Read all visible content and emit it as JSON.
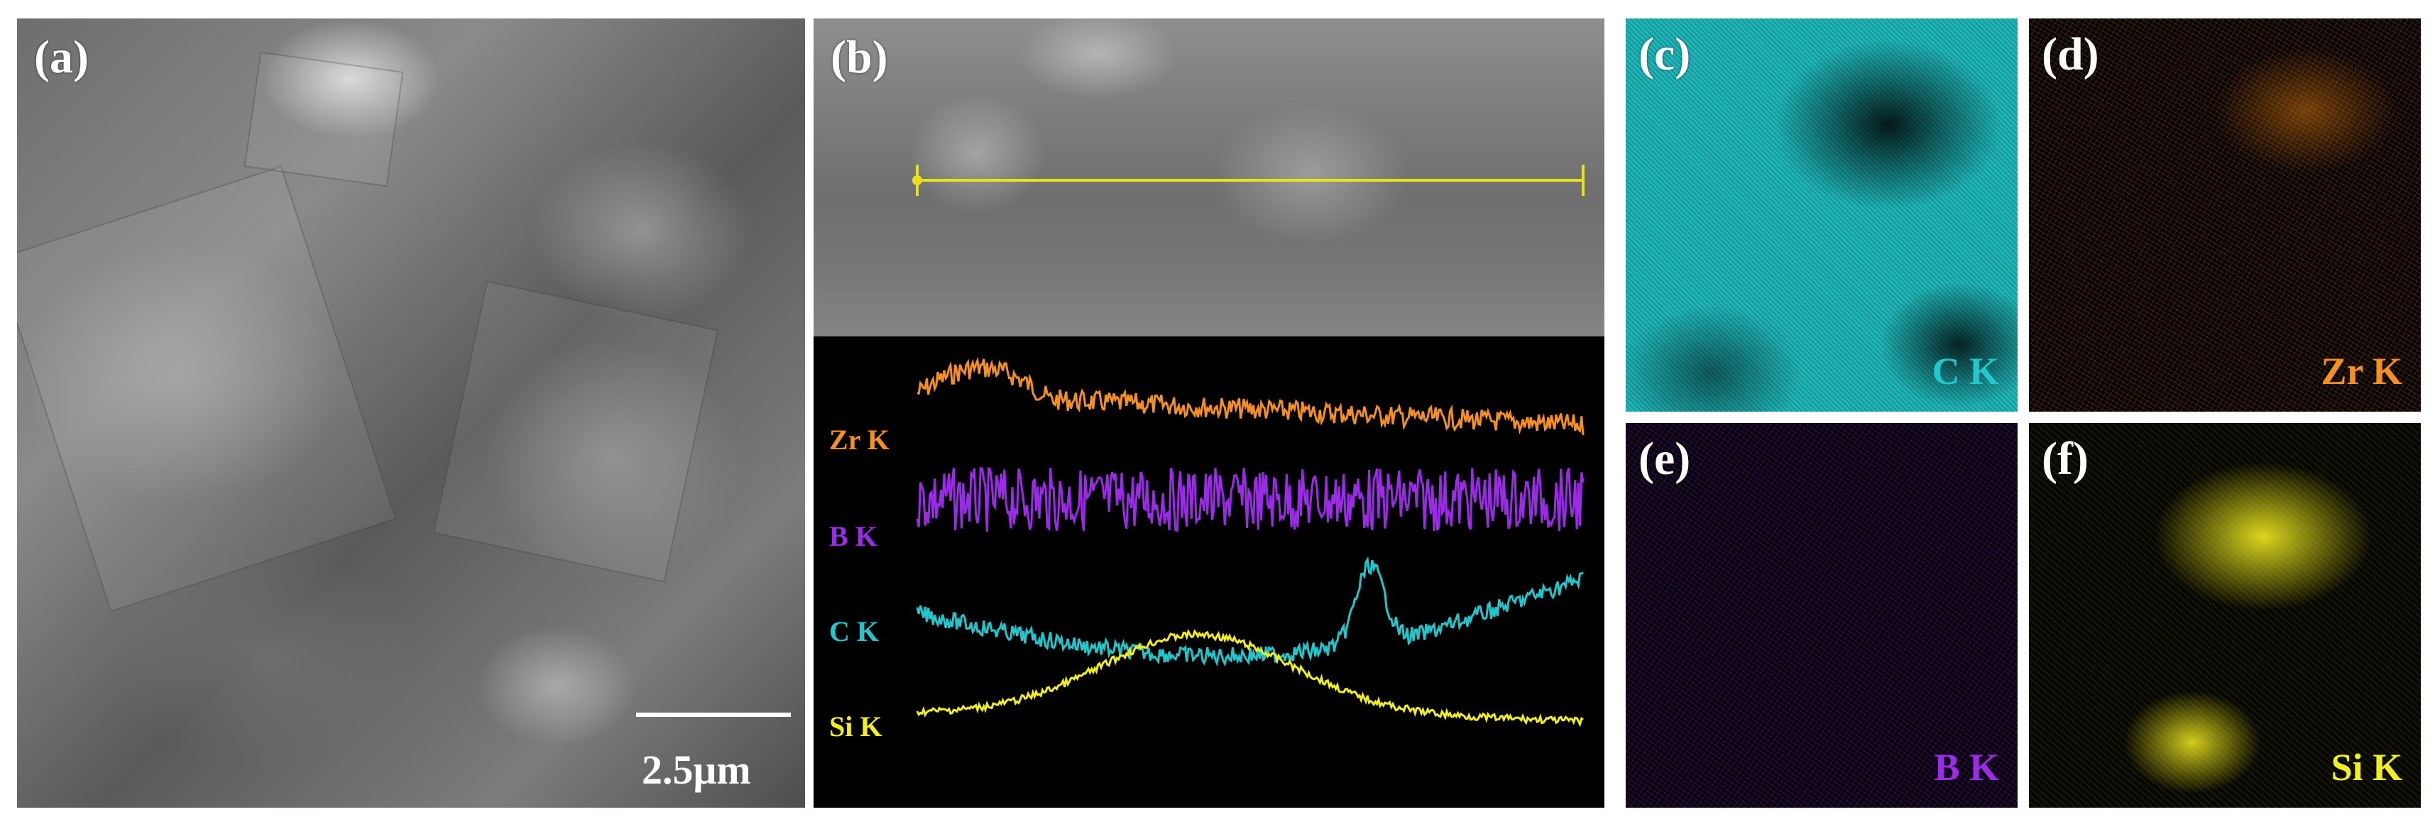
{
  "figure": {
    "panels": {
      "a": {
        "label": "(a)",
        "scale_bar_text": "2.5μm"
      },
      "b": {
        "label": "(b)",
        "linescan_labels": [
          {
            "key": "zr",
            "text": "Zr  K",
            "color": "#f5901e"
          },
          {
            "key": "b",
            "text": "B  K",
            "color": "#9b2be8"
          },
          {
            "key": "c",
            "text": "C  K",
            "color": "#1fc8cc"
          },
          {
            "key": "si",
            "text": "Si  K",
            "color": "#f2ee1a"
          }
        ]
      },
      "c": {
        "label": "(c)",
        "map_label": "C  K",
        "color": "#1fc8cc"
      },
      "d": {
        "label": "(d)",
        "map_label": "Zr  K",
        "color": "#f5901e"
      },
      "e": {
        "label": "(e)",
        "map_label": "B  K",
        "color": "#9b2be8"
      },
      "f": {
        "label": "(f)",
        "map_label": "Si  K",
        "color": "#f2ee1a"
      }
    }
  }
}
